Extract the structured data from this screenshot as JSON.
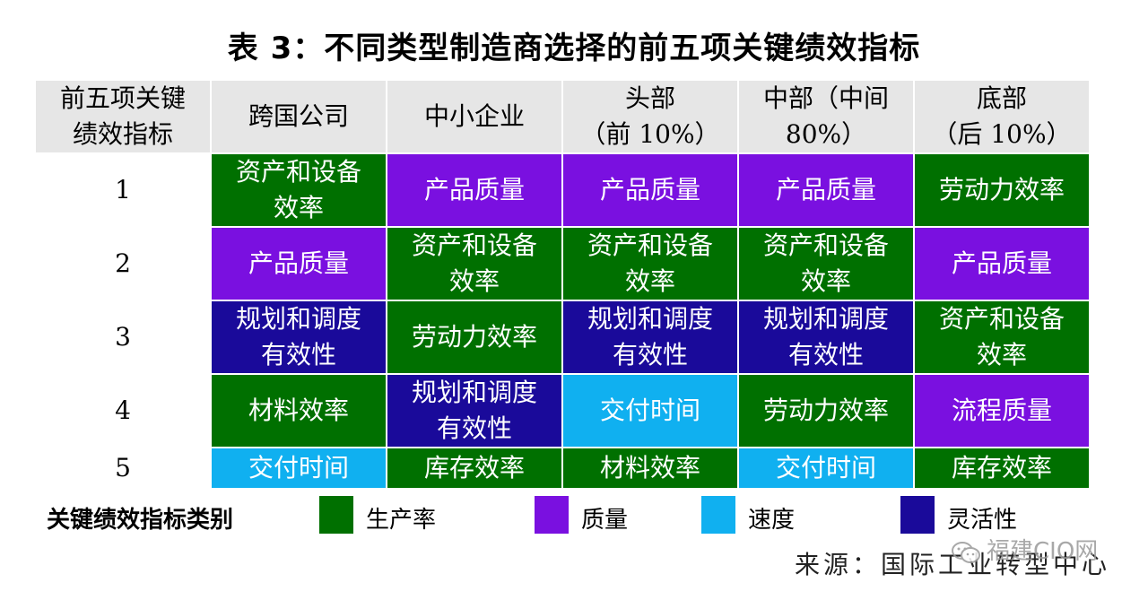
{
  "title": "表 3：不同类型制造商选择的前五项关键绩效指标",
  "colors": {
    "productivity": "#007000",
    "quality": "#7a10e0",
    "speed": "#10b0f0",
    "flexibility": "#1a0a9a"
  },
  "header": [
    [
      "前五项关键",
      "绩效指标"
    ],
    [
      "跨国公司"
    ],
    [
      "中小企业"
    ],
    [
      "头部",
      "（前 10%）"
    ],
    [
      "中部（中间",
      "80%）"
    ],
    [
      "底部",
      "（后 10%）"
    ]
  ],
  "rows": [
    {
      "rank": "1",
      "cells": [
        {
          "text": [
            "资产和设备",
            "效率"
          ],
          "cat": "productivity"
        },
        {
          "text": [
            "产品质量"
          ],
          "cat": "quality"
        },
        {
          "text": [
            "产品质量"
          ],
          "cat": "quality"
        },
        {
          "text": [
            "产品质量"
          ],
          "cat": "quality"
        },
        {
          "text": [
            "劳动力效率"
          ],
          "cat": "productivity"
        }
      ]
    },
    {
      "rank": "2",
      "cells": [
        {
          "text": [
            "产品质量"
          ],
          "cat": "quality"
        },
        {
          "text": [
            "资产和设备",
            "效率"
          ],
          "cat": "productivity"
        },
        {
          "text": [
            "资产和设备",
            "效率"
          ],
          "cat": "productivity"
        },
        {
          "text": [
            "资产和设备",
            "效率"
          ],
          "cat": "productivity"
        },
        {
          "text": [
            "产品质量"
          ],
          "cat": "quality"
        }
      ]
    },
    {
      "rank": "3",
      "cells": [
        {
          "text": [
            "规划和调度",
            "有效性"
          ],
          "cat": "flexibility"
        },
        {
          "text": [
            "劳动力效率"
          ],
          "cat": "productivity"
        },
        {
          "text": [
            "规划和调度",
            "有效性"
          ],
          "cat": "flexibility"
        },
        {
          "text": [
            "规划和调度",
            "有效性"
          ],
          "cat": "flexibility"
        },
        {
          "text": [
            "资产和设备",
            "效率"
          ],
          "cat": "productivity"
        }
      ]
    },
    {
      "rank": "4",
      "cells": [
        {
          "text": [
            "材料效率"
          ],
          "cat": "productivity"
        },
        {
          "text": [
            "规划和调度",
            "有效性"
          ],
          "cat": "flexibility"
        },
        {
          "text": [
            "交付时间"
          ],
          "cat": "speed"
        },
        {
          "text": [
            "劳动力效率"
          ],
          "cat": "productivity"
        },
        {
          "text": [
            "流程质量"
          ],
          "cat": "quality"
        }
      ]
    },
    {
      "rank": "5",
      "cells": [
        {
          "text": [
            "交付时间"
          ],
          "cat": "speed"
        },
        {
          "text": [
            "库存效率"
          ],
          "cat": "productivity"
        },
        {
          "text": [
            "材料效率"
          ],
          "cat": "productivity"
        },
        {
          "text": [
            "交付时间"
          ],
          "cat": "speed"
        },
        {
          "text": [
            "库存效率"
          ],
          "cat": "productivity"
        }
      ]
    }
  ],
  "legend": {
    "label": "关键绩效指标类别",
    "items": [
      {
        "cat": "productivity",
        "text": "生产率"
      },
      {
        "cat": "quality",
        "text": "质量"
      },
      {
        "cat": "speed",
        "text": "速度"
      },
      {
        "cat": "flexibility",
        "text": "灵活性"
      }
    ]
  },
  "source": "来源：国际工业转型中心",
  "watermark": {
    "text": "福建CIO网",
    "icon": "wechat-icon"
  }
}
